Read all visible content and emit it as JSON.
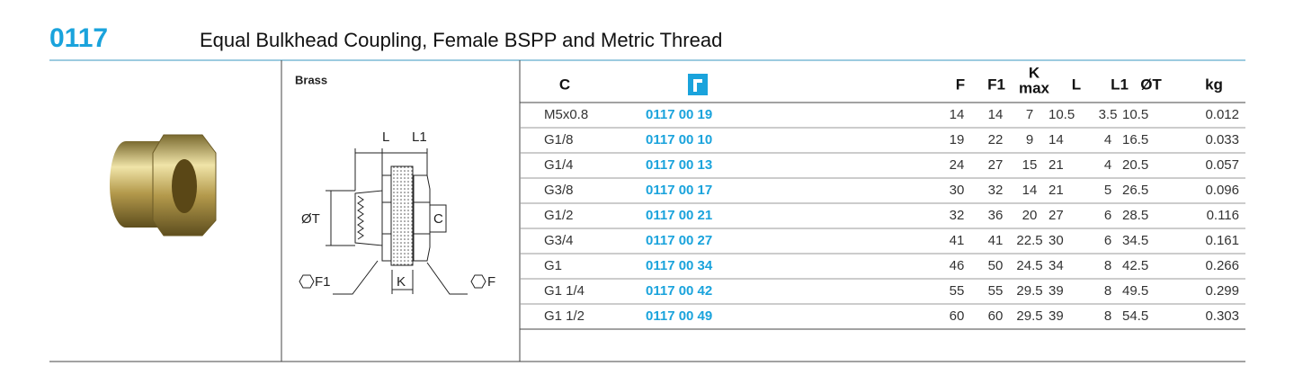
{
  "header": {
    "code": "0117",
    "title": "Equal Bulkhead Coupling, Female BSPP and Metric Thread"
  },
  "material": "Brass",
  "diagram": {
    "l": "L",
    "l1": "L1",
    "t": "ØT",
    "c": "C",
    "f1": "F1",
    "k": "K",
    "f": "F"
  },
  "table": {
    "columns": {
      "c": "C",
      "f": "F",
      "f1": "F1",
      "k": "K",
      "k_sub": "max",
      "l": "L",
      "l1": "L1",
      "t": "ØT",
      "kg": "kg"
    },
    "rows": [
      [
        "M5x0.8",
        "0117 00 19",
        "14",
        "14",
        "7",
        "10.5",
        "3.5",
        "10.5",
        "0.012"
      ],
      [
        "G1/8",
        "0117 00 10",
        "19",
        "22",
        "9",
        "14",
        "4",
        "16.5",
        "0.033"
      ],
      [
        "G1/4",
        "0117 00 13",
        "24",
        "27",
        "15",
        "21",
        "4",
        "20.5",
        "0.057"
      ],
      [
        "G3/8",
        "0117 00 17",
        "30",
        "32",
        "14",
        "21",
        "5",
        "26.5",
        "0.096"
      ],
      [
        "G1/2",
        "0117 00 21",
        "32",
        "36",
        "20",
        "27",
        "6",
        "28.5",
        "0.116"
      ],
      [
        "G3/4",
        "0117 00 27",
        "41",
        "41",
        "22.5",
        "30",
        "6",
        "34.5",
        "0.161"
      ],
      [
        "G1",
        "0117 00 34",
        "46",
        "50",
        "24.5",
        "34",
        "8",
        "42.5",
        "0.266"
      ],
      [
        "G1 1/4",
        "0117 00 42",
        "55",
        "55",
        "29.5",
        "39",
        "8",
        "49.5",
        "0.299"
      ],
      [
        "G1 1/2",
        "0117 00 49",
        "60",
        "60",
        "29.5",
        "39",
        "8",
        "54.5",
        "0.303"
      ]
    ]
  }
}
